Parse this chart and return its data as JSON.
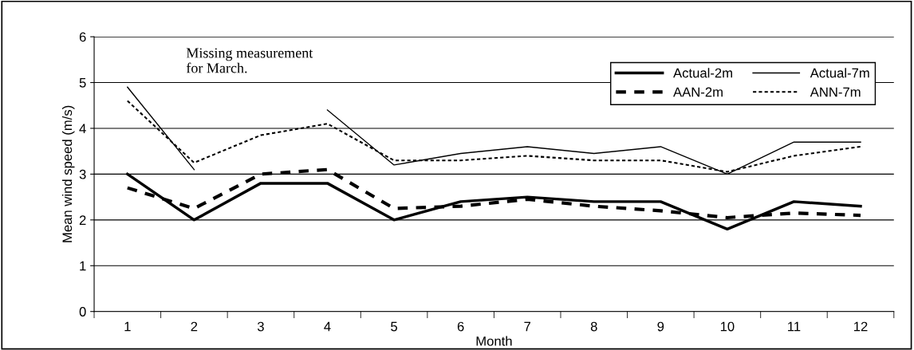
{
  "chart_data": {
    "type": "line",
    "xlabel": "Month",
    "ylabel": "Mean wind speed (m/s)",
    "categories": [
      "1",
      "2",
      "3",
      "4",
      "5",
      "6",
      "7",
      "8",
      "9",
      "10",
      "11",
      "12"
    ],
    "series": [
      {
        "name": "Actual-2m",
        "color": "#000000",
        "line_style": "solid",
        "values": [
          3.0,
          2.0,
          2.8,
          2.8,
          2.0,
          2.4,
          2.5,
          2.4,
          2.4,
          1.8,
          2.4,
          2.3
        ]
      },
      {
        "name": "Actual-7m",
        "color": "#000000",
        "line_style": "solid",
        "values": [
          4.9,
          3.1,
          null,
          4.4,
          3.2,
          3.45,
          3.6,
          3.45,
          3.6,
          3.0,
          3.7,
          3.7
        ]
      },
      {
        "name": "AAN-2m",
        "color": "#000000",
        "line_style": "dashed",
        "values": [
          2.7,
          2.25,
          3.0,
          3.1,
          2.25,
          2.3,
          2.45,
          2.3,
          2.2,
          2.05,
          2.15,
          2.1
        ]
      },
      {
        "name": "ANN-7m",
        "color": "#000000",
        "line_style": "dotted",
        "values": [
          4.6,
          3.25,
          3.85,
          4.1,
          3.3,
          3.3,
          3.4,
          3.3,
          3.3,
          3.05,
          3.4,
          3.6
        ]
      }
    ],
    "ylim": [
      0,
      6
    ],
    "yticks": [
      0,
      1,
      2,
      3,
      4,
      5,
      6
    ],
    "grid": "y",
    "legend": "top right",
    "marker": "none",
    "annotations": [
      "Missing measurement\nfor March."
    ]
  }
}
